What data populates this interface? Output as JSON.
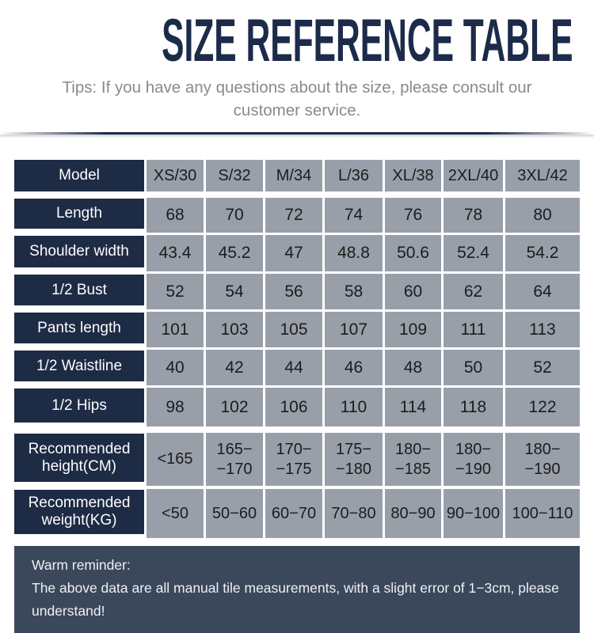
{
  "header": {
    "title": "SIZE REFERENCE TABLE",
    "tips": "Tips: If you have any questions about the size, please consult our customer service."
  },
  "colors": {
    "title_navy": "#1d2b4a",
    "label_navy": "#1e2b45",
    "cell_gray": "#999fa9",
    "footer_slate": "#3b475b",
    "tips_gray": "#8a8a8a"
  },
  "table": {
    "rows": [
      {
        "label": "Model",
        "values": [
          "XS/30",
          "S/32",
          "M/34",
          "L/36",
          "XL/38",
          "2XL/40",
          "3XL/42"
        ]
      },
      {
        "label": "Length",
        "values": [
          "68",
          "70",
          "72",
          "74",
          "76",
          "78",
          "80"
        ]
      },
      {
        "label": "Shoulder width",
        "values": [
          "43.4",
          "45.2",
          "47",
          "48.8",
          "50.6",
          "52.4",
          "54.2"
        ]
      },
      {
        "label": "1/2 Bust",
        "values": [
          "52",
          "54",
          "56",
          "58",
          "60",
          "62",
          "64"
        ]
      },
      {
        "label": "Pants length",
        "values": [
          "101",
          "103",
          "105",
          "107",
          "109",
          "111",
          "113"
        ]
      },
      {
        "label": "1/2 Waistline",
        "values": [
          "40",
          "42",
          "44",
          "46",
          "48",
          "50",
          "52"
        ]
      },
      {
        "label": "1/2 Hips",
        "values": [
          "98",
          "102",
          "106",
          "110",
          "114",
          "118",
          "122"
        ]
      },
      {
        "label": "Recommended height(CM)",
        "values": [
          "<165",
          "165−\n−170",
          "170−\n−175",
          "175−\n−180",
          "180−\n−185",
          "180−\n−190",
          "180−\n−190"
        ]
      },
      {
        "label": "Recommended weight(KG)",
        "values": [
          "<50",
          "50−60",
          "60−70",
          "70−80",
          "80−90",
          "90−100",
          "100−110"
        ]
      }
    ]
  },
  "footer": {
    "reminder_title": "Warm reminder:",
    "reminder_text": "The above data are all manual tile measurements, with a slight error of 1−3cm, please understand!"
  },
  "chart_data": {
    "type": "table",
    "title": "SIZE REFERENCE TABLE",
    "columns": [
      "Model",
      "XS/30",
      "S/32",
      "M/34",
      "L/36",
      "XL/38",
      "2XL/40",
      "3XL/42"
    ],
    "rows": [
      [
        "Length",
        68,
        70,
        72,
        74,
        76,
        78,
        80
      ],
      [
        "Shoulder width",
        43.4,
        45.2,
        47,
        48.8,
        50.6,
        52.4,
        54.2
      ],
      [
        "1/2 Bust",
        52,
        54,
        56,
        58,
        60,
        62,
        64
      ],
      [
        "Pants length",
        101,
        103,
        105,
        107,
        109,
        111,
        113
      ],
      [
        "1/2 Waistline",
        40,
        42,
        44,
        46,
        48,
        50,
        52
      ],
      [
        "1/2 Hips",
        98,
        102,
        106,
        110,
        114,
        118,
        122
      ],
      [
        "Recommended height(CM)",
        "<165",
        "165-170",
        "170-175",
        "175-180",
        "180-185",
        "180-190",
        "180-190"
      ],
      [
        "Recommended weight(KG)",
        "<50",
        "50-60",
        "60-70",
        "70-80",
        "80-90",
        "90-100",
        "100-110"
      ]
    ]
  }
}
